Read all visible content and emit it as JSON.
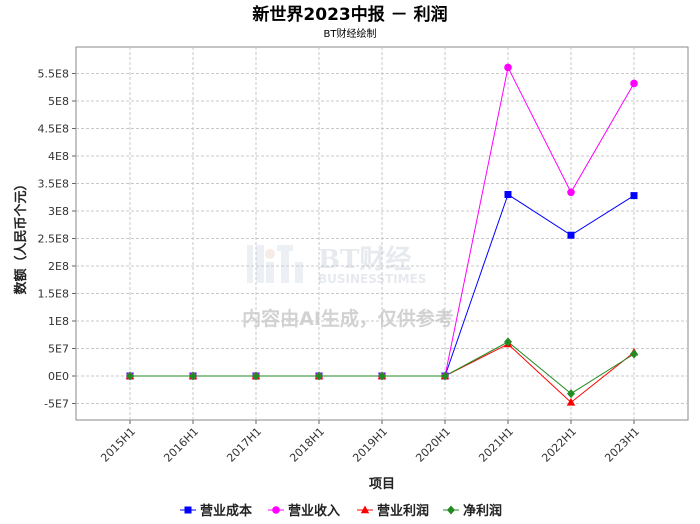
{
  "chart_data": {
    "type": "line",
    "title": "新世界2023中报 － 利润",
    "subtitle": "BT财经绘制",
    "xlabel": "项目",
    "ylabel": "数额（人民币个元）",
    "categories": [
      "2015H1",
      "2016H1",
      "2017H1",
      "2018H1",
      "2019H1",
      "2020H1",
      "2021H1",
      "2022H1",
      "2023H1"
    ],
    "ylim": [
      -70000000,
      590000000
    ],
    "yticks": [
      {
        "value": -50000000,
        "label": "-5E7"
      },
      {
        "value": 0,
        "label": "0E0"
      },
      {
        "value": 50000000,
        "label": "5E7"
      },
      {
        "value": 100000000,
        "label": "1E8"
      },
      {
        "value": 150000000,
        "label": "1.5E8"
      },
      {
        "value": 200000000,
        "label": "2E8"
      },
      {
        "value": 250000000,
        "label": "2.5E8"
      },
      {
        "value": 300000000,
        "label": "3E8"
      },
      {
        "value": 350000000,
        "label": "3.5E8"
      },
      {
        "value": 400000000,
        "label": "4E8"
      },
      {
        "value": 450000000,
        "label": "4.5E8"
      },
      {
        "value": 500000000,
        "label": "5E8"
      },
      {
        "value": 550000000,
        "label": "5.5E8"
      }
    ],
    "grid": true,
    "legend_position": "bottom",
    "series": [
      {
        "name": "营业成本",
        "color": "#0000ff",
        "marker": "square",
        "values": [
          0,
          0,
          0,
          0,
          0,
          0,
          330000000,
          256000000,
          328000000
        ]
      },
      {
        "name": "营业收入",
        "color": "#ff00ff",
        "marker": "circle",
        "values": [
          0,
          0,
          0,
          0,
          0,
          0,
          561000000,
          334000000,
          532000000
        ]
      },
      {
        "name": "营业利润",
        "color": "#ff0000",
        "marker": "triangle",
        "values": [
          0,
          0,
          0,
          0,
          0,
          0,
          58000000,
          -48000000,
          43000000
        ]
      },
      {
        "name": "净利润",
        "color": "#228b22",
        "marker": "diamond",
        "values": [
          0,
          0,
          0,
          0,
          0,
          0,
          62000000,
          -32000000,
          40000000
        ]
      }
    ]
  },
  "watermark": {
    "brand": "BT财经",
    "brand_en": "BUSINESSTIMES",
    "notice": "内容由AI生成，仅供参考"
  }
}
